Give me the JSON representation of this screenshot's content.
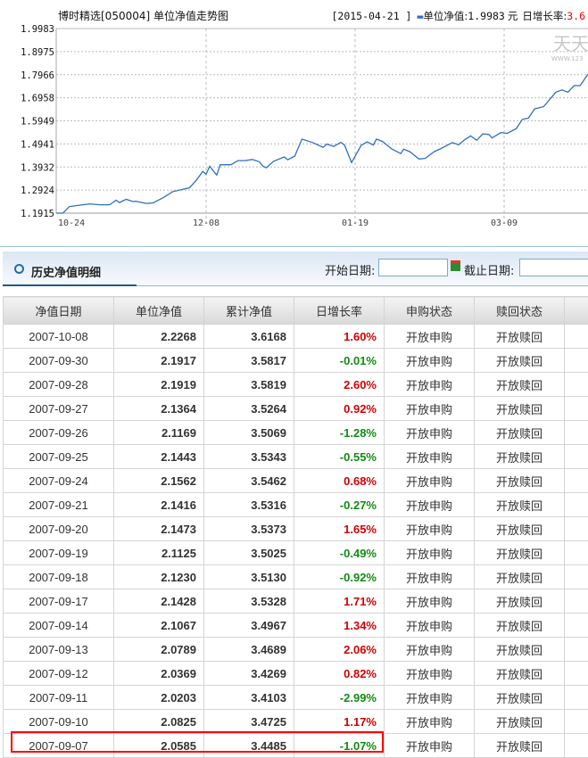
{
  "chart_data": {
    "type": "line",
    "title": "博时精选[050004] 单位净值走势图",
    "info": {
      "date": "[2015-04-21 ]",
      "legend": "单位净值:",
      "value": "1.9983",
      "unit": "元",
      "rate_label": "日增长率:",
      "rate": "3.6"
    },
    "watermark": {
      "main": "天天",
      "sub": "WWW.123"
    },
    "yticks": [
      "1.9983",
      "1.8975",
      "1.7966",
      "1.6958",
      "1.5949",
      "1.4941",
      "1.3932",
      "1.2924",
      "1.1915"
    ],
    "ylim": [
      1.1915,
      1.9983
    ],
    "xticks": [
      {
        "label": "10-24",
        "date": "2014-10-24"
      },
      {
        "label": "12-08",
        "date": "2014-12-08"
      },
      {
        "label": "01-19",
        "date": "2015-01-19"
      },
      {
        "label": "03-09",
        "date": "2015-03-09"
      }
    ],
    "grid": true,
    "line_color": "#2f6fc0",
    "series": [
      {
        "points": [
          [
            "2014-10-24",
            1.1915
          ],
          [
            "2014-10-26",
            1.1915
          ],
          [
            "2014-10-28",
            1.2205
          ],
          [
            "2014-10-31",
            1.226
          ],
          [
            "2014-11-03",
            1.232
          ],
          [
            "2014-11-06",
            1.228
          ],
          [
            "2014-11-09",
            1.228
          ],
          [
            "2014-11-11",
            1.248
          ],
          [
            "2014-11-12",
            1.238
          ],
          [
            "2014-11-14",
            1.252
          ],
          [
            "2014-11-16",
            1.242
          ],
          [
            "2014-11-17",
            1.243
          ],
          [
            "2014-11-20",
            1.234
          ],
          [
            "2014-11-22",
            1.236
          ],
          [
            "2014-11-25",
            1.258
          ],
          [
            "2014-11-28",
            1.286
          ],
          [
            "2014-12-03",
            1.302
          ],
          [
            "2014-12-05",
            1.334
          ],
          [
            "2014-12-07",
            1.374
          ],
          [
            "2014-12-08",
            1.362
          ],
          [
            "2014-12-09",
            1.396
          ],
          [
            "2014-12-11",
            1.358
          ],
          [
            "2014-12-12",
            1.403
          ],
          [
            "2014-12-15",
            1.403
          ],
          [
            "2014-12-17",
            1.421
          ],
          [
            "2014-12-19",
            1.421
          ],
          [
            "2014-12-21",
            1.426
          ],
          [
            "2014-12-23",
            1.416
          ],
          [
            "2014-12-24",
            1.397
          ],
          [
            "2014-12-25",
            1.39
          ],
          [
            "2014-12-27",
            1.418
          ],
          [
            "2014-12-30",
            1.437
          ],
          [
            "2014-12-31",
            1.425
          ],
          [
            "2015-01-02",
            1.441
          ],
          [
            "2015-01-04",
            1.515
          ],
          [
            "2015-01-07",
            1.5
          ],
          [
            "2015-01-10",
            1.479
          ],
          [
            "2015-01-11",
            1.493
          ],
          [
            "2015-01-13",
            1.483
          ],
          [
            "2015-01-15",
            1.501
          ],
          [
            "2015-01-16",
            1.489
          ],
          [
            "2015-01-18",
            1.412
          ],
          [
            "2015-01-21",
            1.488
          ],
          [
            "2015-01-23",
            1.503
          ],
          [
            "2015-01-25",
            1.489
          ],
          [
            "2015-01-26",
            1.515
          ],
          [
            "2015-01-28",
            1.505
          ],
          [
            "2015-01-31",
            1.472
          ],
          [
            "2015-02-03",
            1.452
          ],
          [
            "2015-02-04",
            1.471
          ],
          [
            "2015-02-06",
            1.46
          ],
          [
            "2015-02-09",
            1.428
          ],
          [
            "2015-02-11",
            1.431
          ],
          [
            "2015-02-14",
            1.46
          ],
          [
            "2015-02-16",
            1.472
          ],
          [
            "2015-02-20",
            1.5
          ],
          [
            "2015-02-22",
            1.49
          ],
          [
            "2015-02-24",
            1.512
          ],
          [
            "2015-02-26",
            1.529
          ],
          [
            "2015-02-28",
            1.51
          ],
          [
            "2015-03-02",
            1.538
          ],
          [
            "2015-03-04",
            1.535
          ],
          [
            "2015-03-05",
            1.52
          ],
          [
            "2015-03-08",
            1.544
          ],
          [
            "2015-03-10",
            1.54
          ],
          [
            "2015-03-13",
            1.561
          ],
          [
            "2015-03-15",
            1.601
          ],
          [
            "2015-03-17",
            1.607
          ],
          [
            "2015-03-19",
            1.647
          ],
          [
            "2015-03-22",
            1.657
          ],
          [
            "2015-03-26",
            1.72
          ],
          [
            "2015-03-28",
            1.73
          ],
          [
            "2015-03-30",
            1.72
          ],
          [
            "2015-04-01",
            1.749
          ],
          [
            "2015-04-03",
            1.749
          ],
          [
            "2015-04-06",
            1.799
          ]
        ]
      }
    ]
  },
  "history": {
    "title": "历史净值明细",
    "start_label": "开始日期:",
    "start_value": "",
    "end_label": "截止日期:",
    "end_value": "",
    "columns": [
      "净值日期",
      "单位净值",
      "累计净值",
      "日增长率",
      "申购状态",
      "赎回状态",
      ""
    ],
    "rows": [
      [
        "2007-10-08",
        "2.2268",
        "3.6168",
        "1.60%",
        "开放申购",
        "开放赎回"
      ],
      [
        "2007-09-30",
        "2.1917",
        "3.5817",
        "-0.01%",
        "开放申购",
        "开放赎回"
      ],
      [
        "2007-09-28",
        "2.1919",
        "3.5819",
        "2.60%",
        "开放申购",
        "开放赎回"
      ],
      [
        "2007-09-27",
        "2.1364",
        "3.5264",
        "0.92%",
        "开放申购",
        "开放赎回"
      ],
      [
        "2007-09-26",
        "2.1169",
        "3.5069",
        "-1.28%",
        "开放申购",
        "开放赎回"
      ],
      [
        "2007-09-25",
        "2.1443",
        "3.5343",
        "-0.55%",
        "开放申购",
        "开放赎回"
      ],
      [
        "2007-09-24",
        "2.1562",
        "3.5462",
        "0.68%",
        "开放申购",
        "开放赎回"
      ],
      [
        "2007-09-21",
        "2.1416",
        "3.5316",
        "-0.27%",
        "开放申购",
        "开放赎回"
      ],
      [
        "2007-09-20",
        "2.1473",
        "3.5373",
        "1.65%",
        "开放申购",
        "开放赎回"
      ],
      [
        "2007-09-19",
        "2.1125",
        "3.5025",
        "-0.49%",
        "开放申购",
        "开放赎回"
      ],
      [
        "2007-09-18",
        "2.1230",
        "3.5130",
        "-0.92%",
        "开放申购",
        "开放赎回"
      ],
      [
        "2007-09-17",
        "2.1428",
        "3.5328",
        "1.71%",
        "开放申购",
        "开放赎回"
      ],
      [
        "2007-09-14",
        "2.1067",
        "3.4967",
        "1.34%",
        "开放申购",
        "开放赎回"
      ],
      [
        "2007-09-13",
        "2.0789",
        "3.4689",
        "2.06%",
        "开放申购",
        "开放赎回"
      ],
      [
        "2007-09-12",
        "2.0369",
        "3.4269",
        "0.82%",
        "开放申购",
        "开放赎回"
      ],
      [
        "2007-09-11",
        "2.0203",
        "3.4103",
        "-2.99%",
        "开放申购",
        "开放赎回"
      ],
      [
        "2007-09-10",
        "2.0825",
        "3.4725",
        "1.17%",
        "开放申购",
        "开放赎回"
      ],
      [
        "2007-09-07",
        "2.0585",
        "3.4485",
        "-1.07%",
        "开放申购",
        "开放赎回"
      ]
    ],
    "highlighted_row": "2007-09-07",
    "colors": {
      "up": "#d10000",
      "down": "#138a13",
      "highlight": "#ff0000"
    }
  }
}
